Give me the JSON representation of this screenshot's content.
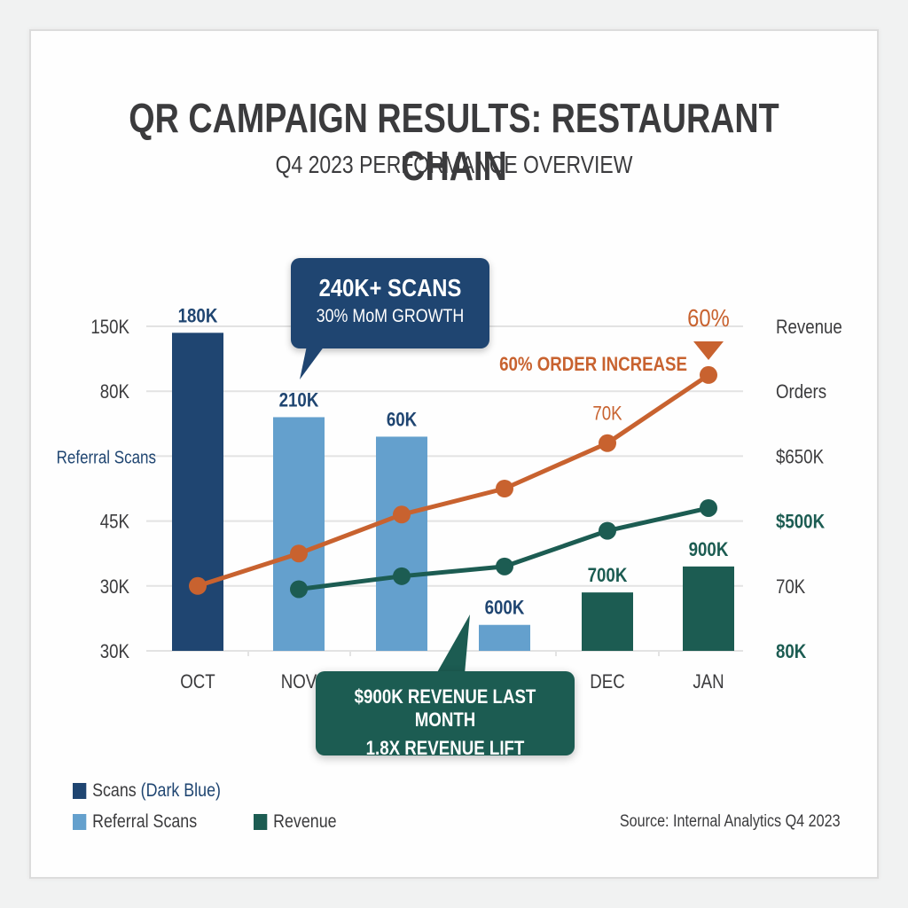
{
  "title": "QR CAMPAIGN RESULTS: RESTAURANT CHAIN",
  "subtitle": "Q4 2023 PERFORMANCE OVERVIEW",
  "colors": {
    "dark_blue": "#1f4571",
    "light_blue": "#64a0cd",
    "dark_green": "#1c5c52",
    "orange": "#c8622f",
    "text": "#3b3b3d",
    "grid": "#e3e3e3"
  },
  "callouts": {
    "scans": {
      "line1": "240K+ SCANS",
      "line2": "30% MoM GROWTH"
    },
    "revenue": {
      "line1": "$900K REVENUE LAST MONTH",
      "line2": "1.8X REVENUE LIFT"
    },
    "orders": {
      "label": "60% ORDER INCREASE",
      "peak": "60%"
    }
  },
  "legend": {
    "scans": "Scans",
    "scans_note": "(Dark Blue)",
    "referral": "Referral Scans",
    "revenue": "Revenue"
  },
  "source": "Source: Internal Analytics Q4 2023",
  "chart_data": {
    "type": "bar",
    "title": "QR CAMPAIGN RESULTS: RESTAURANT CHAIN",
    "subtitle": "Q4 2023 PERFORMANCE OVERVIEW",
    "categories": [
      "OCT",
      "NOV",
      "",
      "",
      "DEC",
      "JAN"
    ],
    "left_axis": {
      "tick_labels": [
        "30K",
        "30K",
        "45K",
        "Referral Scans",
        "80K",
        "150K"
      ],
      "note": "tick labels listed bottom to top; axis is non-linear, values below are in gridline-step units (0 = baseline, 5 = top gridline)",
      "range": [
        0,
        5
      ]
    },
    "right_axis": {
      "tick_labels": [
        "80K",
        "70K",
        "$500K",
        "$650K",
        "Orders",
        "Revenue"
      ]
    },
    "grid": true,
    "bars": [
      {
        "category": "OCT",
        "series": "Scans",
        "value": 4.9,
        "label": "180K"
      },
      {
        "category": "NOV",
        "series": "Referral Scans",
        "value": 3.6,
        "label": "210K"
      },
      {
        "category": "",
        "series": "Referral Scans",
        "value": 3.3,
        "label": "60K"
      },
      {
        "category": "",
        "series": "Referral Scans",
        "value": 0.4,
        "label": "600K"
      },
      {
        "category": "DEC",
        "series": "Revenue",
        "value": 0.9,
        "label": "700K"
      },
      {
        "category": "JAN",
        "series": "Revenue",
        "value": 1.3,
        "label": "900K"
      }
    ],
    "series": [
      {
        "name": "Orders",
        "type": "line",
        "values": [
          1.0,
          1.5,
          2.1,
          2.5,
          3.2,
          4.25
        ],
        "point_labels": [
          "",
          "",
          "",
          "",
          "70K",
          ""
        ]
      },
      {
        "name": "Revenue",
        "type": "line",
        "values": [
          null,
          0.95,
          1.15,
          1.3,
          1.85,
          2.2
        ]
      }
    ],
    "legend": [
      "Scans (Dark Blue)",
      "Referral Scans",
      "Revenue"
    ],
    "legend_position": "bottom-left"
  }
}
